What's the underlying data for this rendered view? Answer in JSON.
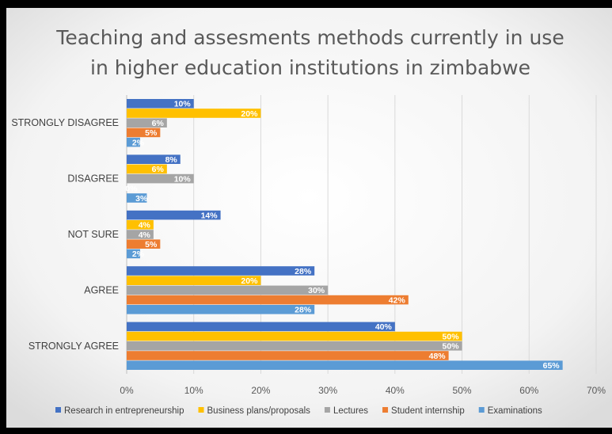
{
  "chart_data": {
    "type": "bar",
    "orientation": "horizontal",
    "title_lines": [
      "Teaching and assesments methods currently in use",
      "in higher education institutions in zimbabwe"
    ],
    "categories": [
      "STRONGLY DISAGREE",
      "DISAGREE",
      "NOT SURE",
      "AGREE",
      "STRONGLY AGREE"
    ],
    "series": [
      {
        "name": "Research in entrepreneurship",
        "color": "#4472C4",
        "values": [
          10,
          8,
          14,
          28,
          40
        ],
        "labels": [
          "10%",
          "8%",
          "14%",
          "28%",
          "40%"
        ]
      },
      {
        "name": "Business plans/proposals",
        "color": "#FFC000",
        "values": [
          20,
          6,
          4,
          20,
          50
        ],
        "labels": [
          "20%",
          "6%",
          "4%",
          "20%",
          "50%"
        ]
      },
      {
        "name": "Lectures",
        "color": "#A5A5A5",
        "values": [
          6,
          10,
          4,
          30,
          50
        ],
        "labels": [
          "6%",
          "10%",
          "4%",
          "30%",
          "50%"
        ]
      },
      {
        "name": "Student internship",
        "color": "#ED7D31",
        "values": [
          5,
          0,
          5,
          42,
          48
        ],
        "labels": [
          "5%",
          "0%",
          "5%",
          "42%",
          "48%"
        ]
      },
      {
        "name": "Examinations",
        "color": "#5B9BD5",
        "values": [
          2,
          3,
          2,
          28,
          65
        ],
        "labels": [
          "2%",
          "3%",
          "2%",
          "28%",
          "65%"
        ]
      }
    ],
    "x_ticks": [
      "0%",
      "10%",
      "20%",
      "30%",
      "40%",
      "50%",
      "60%",
      "70%"
    ],
    "xlim": [
      0,
      70
    ],
    "grid": true,
    "legend_position": "bottom"
  }
}
